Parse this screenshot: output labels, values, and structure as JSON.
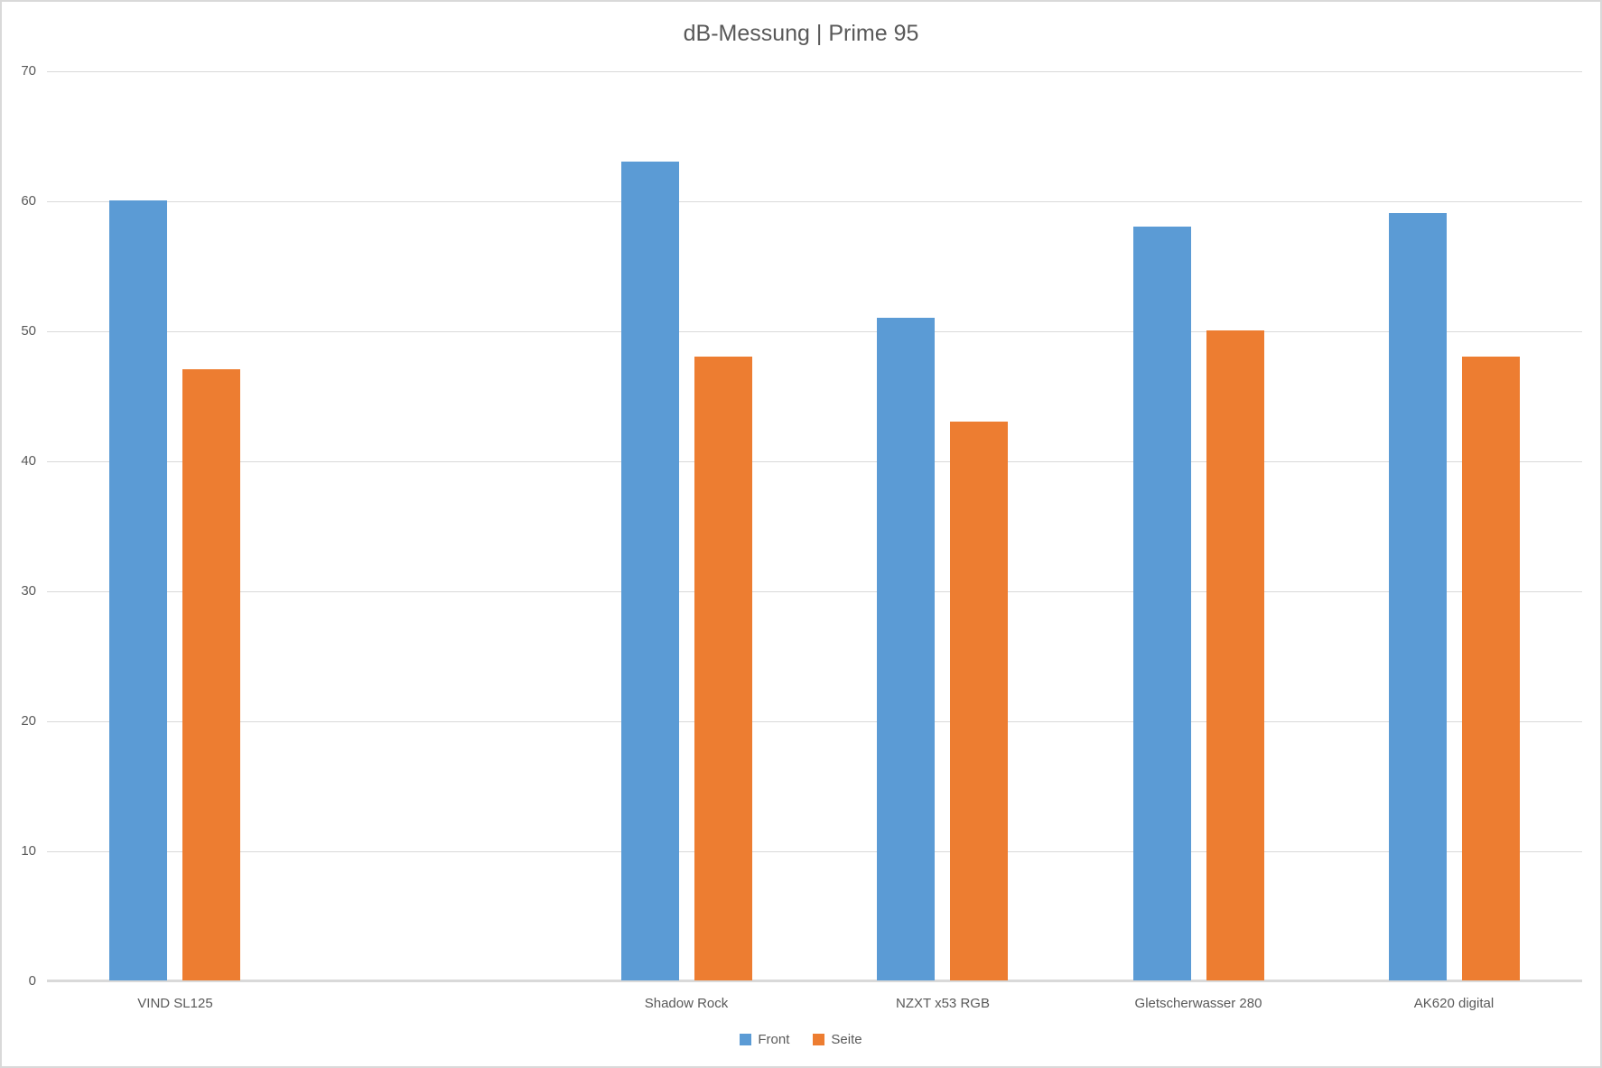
{
  "ui": {
    "title": "dB-Messung | Prime 95"
  },
  "colors": {
    "front_series": "#5B9BD5",
    "seite_series": "#ED7D31",
    "gridline": "#D9D9D9",
    "axis_line": "#D9D9D9",
    "text": "#595959",
    "border": "#D9D9D9",
    "background": "#FFFFFF"
  },
  "chart_data": {
    "type": "bar",
    "title": "dB-Messung | Prime 95",
    "categories": [
      "VIND SL125",
      "",
      "Shadow Rock",
      "NZXT x53 RGB",
      "Gletscherwasser 280",
      "AK620 digital"
    ],
    "series": [
      {
        "name": "Front",
        "color": "#5B9BD5",
        "values": [
          60,
          null,
          63,
          51,
          58,
          59
        ]
      },
      {
        "name": "Seite",
        "color": "#ED7D31",
        "values": [
          47,
          null,
          48,
          43,
          50,
          48
        ]
      }
    ],
    "xlabel": "",
    "ylabel": "",
    "ylim": [
      0,
      70
    ],
    "ytick_interval": 10,
    "yticks": [
      0,
      10,
      20,
      30,
      40,
      50,
      60,
      70
    ],
    "grid": true,
    "legend_position": "bottom",
    "legend_entries": [
      "Front",
      "Seite"
    ]
  }
}
